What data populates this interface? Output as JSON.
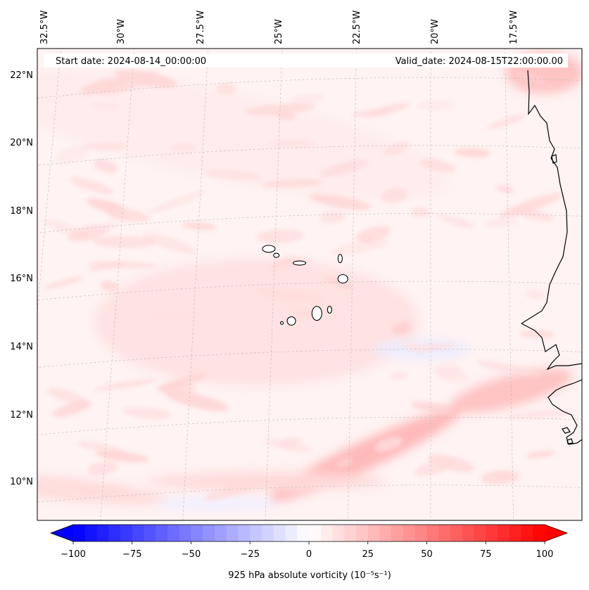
{
  "map": {
    "projection": "lambert-conformal",
    "extent": {
      "lon_min": -33.0,
      "lon_max": -15.8,
      "lat_min": 8.8,
      "lat_max": 22.8
    },
    "header": {
      "start_date": "Start date: 2024-08-14_00:00:00",
      "valid_date": "Valid_date: 2024-08-15T22:00:00.00"
    },
    "lon_labels": [
      {
        "lon": -32.5,
        "text": "32.5°W"
      },
      {
        "lon": -30.0,
        "text": "30°W"
      },
      {
        "lon": -27.5,
        "text": "27.5°W"
      },
      {
        "lon": -25.0,
        "text": "25°W"
      },
      {
        "lon": -22.5,
        "text": "22.5°W"
      },
      {
        "lon": -20.0,
        "text": "20°W"
      },
      {
        "lon": -17.5,
        "text": "17.5°W"
      }
    ],
    "lat_labels": [
      {
        "lat": 22,
        "text": "22°N"
      },
      {
        "lat": 20,
        "text": "20°N"
      },
      {
        "lat": 18,
        "text": "18°N"
      },
      {
        "lat": 16,
        "text": "16°N"
      },
      {
        "lat": 14,
        "text": "14°N"
      },
      {
        "lat": 12,
        "text": "12°N"
      },
      {
        "lat": 10,
        "text": "10°N"
      }
    ],
    "field": "925 hPa absolute vorticity",
    "regions": [
      {
        "name": "ne-corner-positive",
        "lon": -16.2,
        "lat": 22.2,
        "value": 25
      },
      {
        "name": "itcz-band-east",
        "lon": -22.0,
        "lat": 10.9,
        "value": 30
      },
      {
        "name": "itcz-band-mid",
        "lon": -25.0,
        "lat": 10.2,
        "value": 15
      },
      {
        "name": "itcz-band-west",
        "lon": -31.0,
        "lat": 10.3,
        "value": 15
      },
      {
        "name": "coastal-band",
        "lon": -17.5,
        "lat": 12.8,
        "value": 25
      },
      {
        "name": "central-streaks",
        "lon": -25.5,
        "lat": 14.9,
        "value": 12
      },
      {
        "name": "nw-diagonal-band",
        "lon": -27.0,
        "lat": 20.5,
        "value": 8
      },
      {
        "name": "east-negative",
        "lon": -20.3,
        "lat": 14.0,
        "value": -8
      },
      {
        "name": "south-negative",
        "lon": -26.5,
        "lat": 9.6,
        "value": -6
      }
    ],
    "islands": [
      {
        "name": "Santo Antao",
        "lon": -25.2,
        "lat": 17.05
      },
      {
        "name": "Sao Vicente",
        "lon": -24.95,
        "lat": 16.85
      },
      {
        "name": "Sao Nicolau",
        "lon": -24.2,
        "lat": 16.6
      },
      {
        "name": "Sal",
        "lon": -22.9,
        "lat": 16.7
      },
      {
        "name": "Boa Vista",
        "lon": -22.8,
        "lat": 16.1
      },
      {
        "name": "Santiago",
        "lon": -23.6,
        "lat": 15.1
      },
      {
        "name": "Fogo",
        "lon": -24.4,
        "lat": 14.9
      },
      {
        "name": "Maio",
        "lon": -23.2,
        "lat": 15.2
      },
      {
        "name": "Brava",
        "lon": -24.7,
        "lat": 14.85
      }
    ]
  },
  "colorbar": {
    "label": "925 hPa absolute vorticity (10⁻⁵s⁻¹)",
    "min": -100,
    "max": 100,
    "step": 5,
    "ticks": [
      {
        "value": -100,
        "text": "−100"
      },
      {
        "value": -75,
        "text": "−75"
      },
      {
        "value": -50,
        "text": "−50"
      },
      {
        "value": -25,
        "text": "−25"
      },
      {
        "value": 0,
        "text": "0"
      },
      {
        "value": 25,
        "text": "25"
      },
      {
        "value": 50,
        "text": "50"
      },
      {
        "value": 75,
        "text": "75"
      },
      {
        "value": 100,
        "text": "100"
      }
    ],
    "colors": {
      "negative": "#0000ff",
      "zero": "#ffffff",
      "positive": "#ff0000"
    }
  }
}
